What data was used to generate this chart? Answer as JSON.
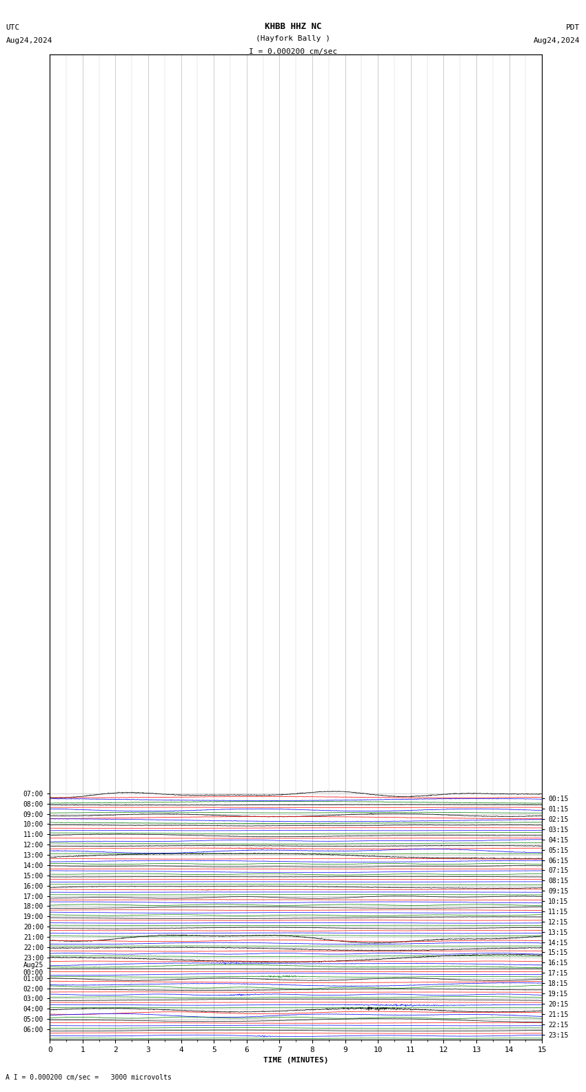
{
  "title_line1": "KHBB HHZ NC",
  "title_line2": "(Hayfork Bally )",
  "scale_label": "I = 0.000200 cm/sec",
  "utc_label": "UTC",
  "utc_date": "Aug24,2024",
  "pdt_label": "PDT",
  "pdt_date": "Aug24,2024",
  "bottom_label": "A I = 0.000200 cm/sec =   3000 microvolts",
  "xlabel": "TIME (MINUTES)",
  "left_times": [
    "07:00",
    "08:00",
    "09:00",
    "10:00",
    "11:00",
    "12:00",
    "13:00",
    "14:00",
    "15:00",
    "16:00",
    "17:00",
    "18:00",
    "19:00",
    "20:00",
    "21:00",
    "22:00",
    "23:00",
    "Aug25\n00:00",
    "01:00",
    "02:00",
    "03:00",
    "04:00",
    "05:00",
    "06:00"
  ],
  "right_times": [
    "00:15",
    "01:15",
    "02:15",
    "03:15",
    "04:15",
    "05:15",
    "06:15",
    "07:15",
    "08:15",
    "09:15",
    "10:15",
    "11:15",
    "12:15",
    "13:15",
    "14:15",
    "15:15",
    "16:15",
    "17:15",
    "18:15",
    "19:15",
    "20:15",
    "21:15",
    "22:15",
    "23:15"
  ],
  "num_rows": 24,
  "traces_per_row": 4,
  "colors": [
    "black",
    "red",
    "blue",
    "green"
  ],
  "bg_color": "#ffffff",
  "grid_color": "#999999",
  "fig_width": 8.5,
  "fig_height": 15.84,
  "x_ticks": [
    0,
    1,
    2,
    3,
    4,
    5,
    6,
    7,
    8,
    9,
    10,
    11,
    12,
    13,
    14,
    15
  ]
}
